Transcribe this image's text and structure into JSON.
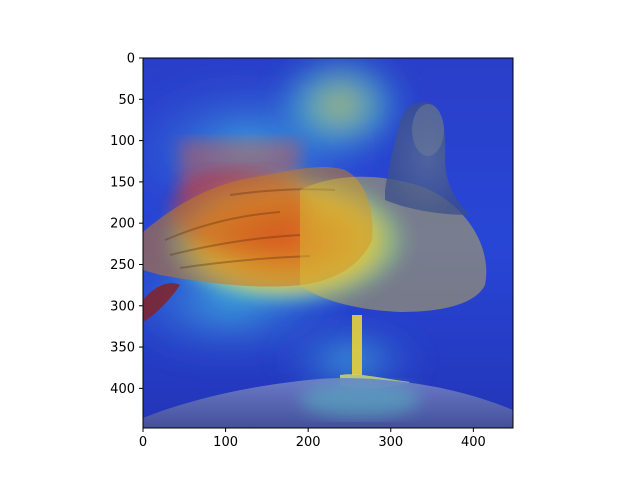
{
  "figure": {
    "type": "image-plot",
    "image_content": "duck-photo-with-heatmap-overlay",
    "colormap": "jet",
    "x_axis": {
      "range": [
        0,
        448
      ],
      "ticks": [
        0,
        100,
        200,
        300,
        400
      ]
    },
    "y_axis": {
      "range": [
        0,
        448
      ],
      "ticks": [
        0,
        50,
        100,
        150,
        200,
        250,
        300,
        350,
        400
      ],
      "inverted": true
    },
    "colors": {
      "axis": "#000000",
      "heat_low": "#1f3bdc",
      "heat_mid": "#3fd0d0",
      "heat_high_yellow": "#f3e43a",
      "heat_max_red": "#e0322a"
    }
  }
}
